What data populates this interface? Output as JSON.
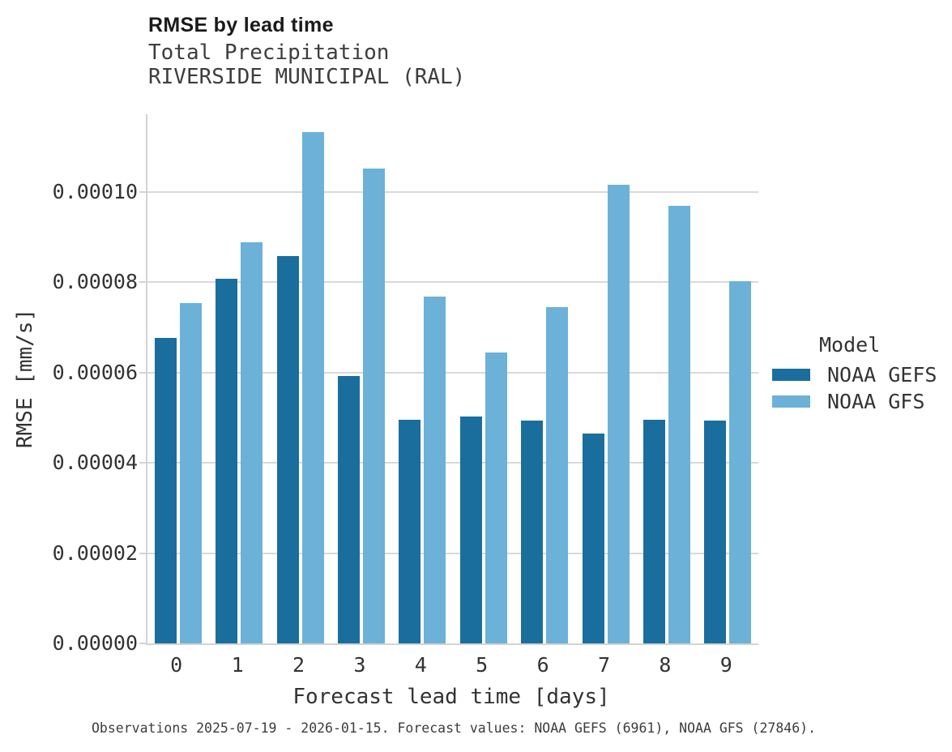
{
  "header": {
    "title": "RMSE by lead time",
    "subtitle_line1": "Total Precipitation",
    "subtitle_line2": "RIVERSIDE MUNICIPAL (RAL)"
  },
  "legend": {
    "title": "Model",
    "entries": [
      "NOAA GEFS",
      "NOAA GFS"
    ]
  },
  "footer": {
    "caption": "Observations 2025-07-19 - 2026-01-15. Forecast values: NOAA GEFS (6961), NOAA GFS (27846)."
  },
  "colors": {
    "noaa_gefs": "#1A6E9E",
    "noaa_gfs": "#6CB1D8",
    "gridline": "#D9D9D9",
    "axis_line": "#D3D3D3",
    "text": "#333333"
  },
  "chart_data": {
    "type": "bar",
    "title": "RMSE by lead time",
    "subtitle": [
      "Total Precipitation",
      "RIVERSIDE MUNICIPAL (RAL)"
    ],
    "categories": [
      "0",
      "1",
      "2",
      "3",
      "4",
      "5",
      "6",
      "7",
      "8",
      "9"
    ],
    "series": [
      {
        "name": "NOAA GEFS",
        "color": "#1A6E9E",
        "values": [
          6.76e-05,
          8.07e-05,
          8.58e-05,
          5.93e-05,
          4.96e-05,
          5.02e-05,
          4.94e-05,
          4.64e-05,
          4.96e-05,
          4.93e-05
        ]
      },
      {
        "name": "NOAA GFS",
        "color": "#6CB1D8",
        "values": [
          7.53e-05,
          8.89e-05,
          0.0001132,
          0.0001052,
          7.68e-05,
          6.45e-05,
          7.44e-05,
          0.0001015,
          9.7e-05,
          8.03e-05
        ]
      }
    ],
    "xlabel": "Forecast lead time [days]",
    "ylabel": "RMSE [mm/s]",
    "ylim": [
      0,
      0.0001172
    ],
    "yticks": [
      0.0,
      2e-05,
      4e-05,
      6e-05,
      8e-05,
      0.0001
    ],
    "ytick_labels": [
      "0.00000",
      "0.00002",
      "0.00004",
      "0.00006",
      "0.00008",
      "0.00010"
    ],
    "grid": "horizontal",
    "legend_position": "right",
    "legend_title": "Model",
    "caption": "Observations 2025-07-19 - 2026-01-15. Forecast values: NOAA GEFS (6961), NOAA GFS (27846)."
  }
}
